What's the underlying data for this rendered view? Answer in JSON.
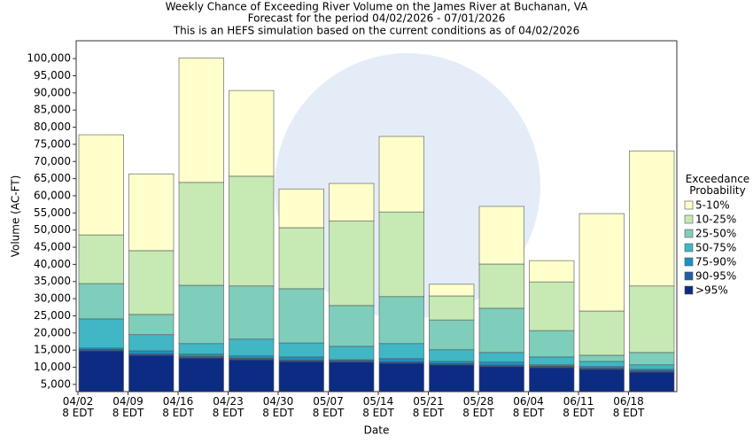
{
  "chart_data": {
    "type": "stacked_bar",
    "title": "Weekly Chance of Exceeding River Volume on the James River at Buchanan, VA",
    "subtitle": [
      "Forecast for the period 04/02/2026 - 07/01/2026",
      "This is an HEFS simulation based on the current conditions as of 04/02/2026"
    ],
    "x_label": "Date",
    "y_label": "Volume (AC-FT)",
    "legend_title": "Exceedance\nProbability",
    "categories": [
      "04/02\n8 EDT",
      "04/09\n8 EDT",
      "04/16\n8 EDT",
      "04/23\n8 EDT",
      "04/30\n8 EDT",
      "05/07\n8 EDT",
      "05/14\n8 EDT",
      "05/21\n8 EDT",
      "05/28\n8 EDT",
      "06/04\n8 EDT",
      "06/11\n8 EDT",
      "06/18\n8 EDT"
    ],
    "series": [
      {
        "name": ">95%",
        "color": "#0c2c84",
        "values": [
          14800,
          13500,
          12700,
          12200,
          11700,
          11500,
          11200,
          10700,
          10200,
          9900,
          9400,
          8600
        ]
      },
      {
        "name": "90-95%",
        "color": "#225ea8",
        "values": [
          400,
          400,
          400,
          400,
          400,
          400,
          400,
          400,
          400,
          400,
          400,
          400
        ]
      },
      {
        "name": "75-90%",
        "color": "#1d91c0",
        "values": [
          400,
          900,
          700,
          700,
          900,
          300,
          900,
          600,
          900,
          400,
          400,
          400
        ]
      },
      {
        "name": "50-75%",
        "color": "#41b6c4",
        "values": [
          8500,
          4700,
          3100,
          4900,
          4100,
          3900,
          4400,
          3400,
          2800,
          2300,
          1500,
          1300
        ]
      },
      {
        "name": "25-50%",
        "color": "#7fcdbb",
        "values": [
          10300,
          5900,
          17000,
          15500,
          15800,
          11900,
          13700,
          8700,
          12900,
          7700,
          1800,
          3600
        ]
      },
      {
        "name": "10-25%",
        "color": "#c7e9b4",
        "values": [
          14200,
          18600,
          30000,
          32000,
          17800,
          24700,
          24700,
          7000,
          12900,
          14200,
          12900,
          19400
        ]
      },
      {
        "name": "5-10%",
        "color": "#ffffcc",
        "values": [
          29200,
          22400,
          36300,
          25000,
          11300,
          10900,
          22000,
          3400,
          16800,
          6200,
          28400,
          39400
        ]
      }
    ],
    "ylim": [
      2900,
      105200
    ],
    "yticks": [
      {
        "value": 5000,
        "label": "5,000"
      },
      {
        "value": 10000,
        "label": "10,000"
      },
      {
        "value": 15000,
        "label": "15,000"
      },
      {
        "value": 20000,
        "label": "20,000"
      },
      {
        "value": 25000,
        "label": "25,000"
      },
      {
        "value": 30000,
        "label": "30,000"
      },
      {
        "value": 35000,
        "label": "35,000"
      },
      {
        "value": 40000,
        "label": "40,000"
      },
      {
        "value": 45000,
        "label": "45,000"
      },
      {
        "value": 50000,
        "label": "50,000"
      },
      {
        "value": 55000,
        "label": "55,000"
      },
      {
        "value": 60000,
        "label": "60,000"
      },
      {
        "value": 65000,
        "label": "65,000"
      },
      {
        "value": 70000,
        "label": "70,000"
      },
      {
        "value": 75000,
        "label": "75,000"
      },
      {
        "value": 80000,
        "label": "80,000"
      },
      {
        "value": 85000,
        "label": "85,000"
      },
      {
        "value": 90000,
        "label": "90,000"
      },
      {
        "value": 95000,
        "label": "95,000"
      },
      {
        "value": 100000,
        "label": "100,000"
      }
    ],
    "grid": false
  }
}
